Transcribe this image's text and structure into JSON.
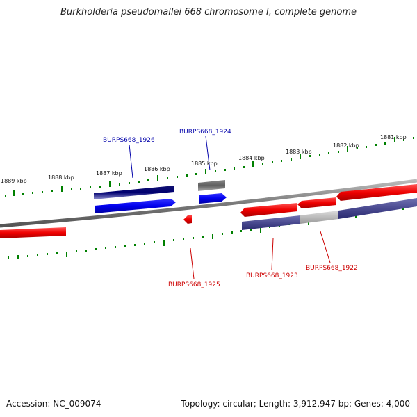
{
  "title": "Burkholderia pseudomallei 668 chromosome I, complete genome",
  "footer": {
    "accession": "Accession: NC_009074",
    "summary": "Topology: circular; Length: 3,912,947 bp; Genes: 4,000"
  },
  "colors": {
    "forward_gene": "#0000ee",
    "forward_gene_dark": "#000080",
    "reverse_gene": "#ee0000",
    "backbone": "#808080",
    "tick": "#008000",
    "blue_label": "#0000aa",
    "red_label": "#cc0000"
  },
  "ticks": [
    "1889 kbp",
    "1888 kbp",
    "1887 kbp",
    "1886 kbp",
    "1885 kbp",
    "1884 kbp",
    "1883 kbp",
    "1882 kbp",
    "1881 kbp"
  ],
  "genes": [
    {
      "label": "BURPS668_1926",
      "strand": "forward"
    },
    {
      "label": "BURPS668_1924",
      "strand": "forward"
    },
    {
      "label": "BURPS668_1925",
      "strand": "reverse"
    },
    {
      "label": "BURPS668_1923",
      "strand": "reverse"
    },
    {
      "label": "BURPS668_1922",
      "strand": "reverse"
    }
  ]
}
